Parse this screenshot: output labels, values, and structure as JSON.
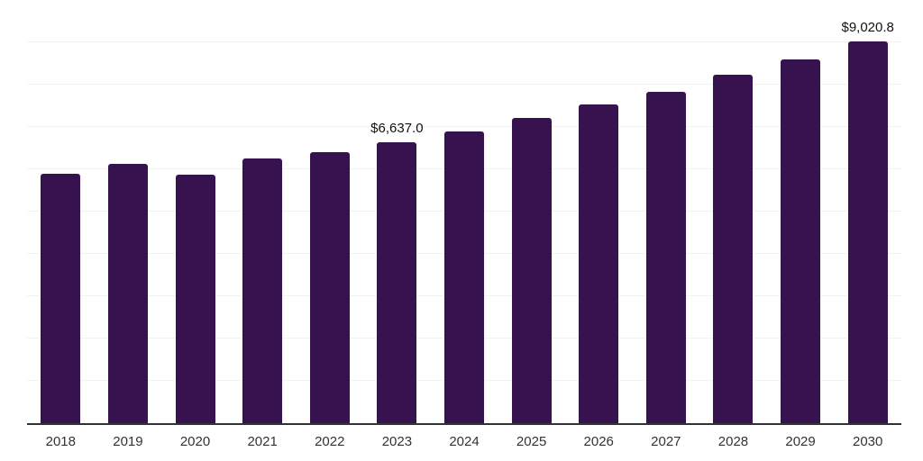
{
  "chart_data": {
    "type": "bar",
    "title": "",
    "xlabel": "",
    "ylabel": "",
    "categories": [
      "2018",
      "2019",
      "2020",
      "2021",
      "2022",
      "2023",
      "2024",
      "2025",
      "2026",
      "2027",
      "2028",
      "2029",
      "2030"
    ],
    "values": [
      5890,
      6125,
      5870,
      6250,
      6415,
      6637.0,
      6895,
      7210,
      7530,
      7830,
      8240,
      8600,
      9020.8
    ],
    "annotations": [
      {
        "category": "2023",
        "text": "$6,637.0"
      },
      {
        "category": "2030",
        "text": "$9,020.8"
      }
    ],
    "ylim": [
      0,
      10000
    ],
    "gridline_step": 1000,
    "grid": true,
    "legend_position": "none",
    "colors": {
      "bar": "#36124E",
      "gridline": "#f2f2f2",
      "axis": "#333333",
      "tick_label": "#333333",
      "value_label": "#111111",
      "background": "#ffffff"
    }
  }
}
